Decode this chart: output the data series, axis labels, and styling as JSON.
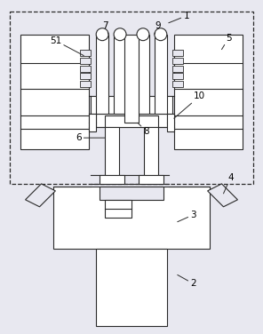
{
  "bg_color": "#e8e8f0",
  "line_color": "#2a2a2a",
  "fill_color": "#ffffff",
  "hatch_color": "#555555",
  "figsize": [
    2.96,
    3.76
  ],
  "dpi": 100
}
